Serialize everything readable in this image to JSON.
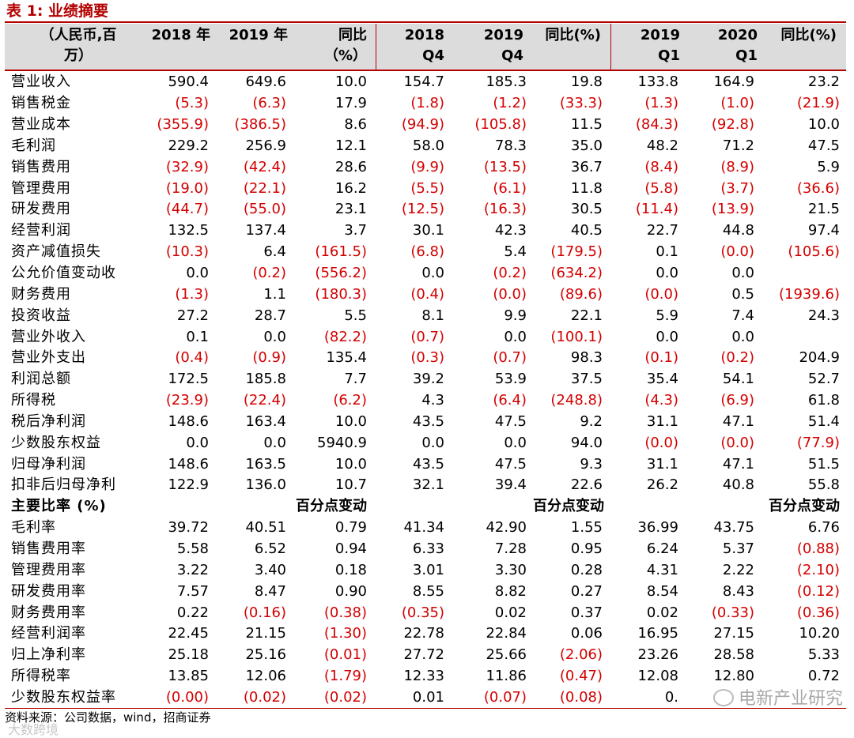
{
  "title": "表 1:  业绩摘要",
  "header": {
    "unit": "（人民币,百\n万）",
    "cols": [
      "2018 年",
      "2019 年",
      "同比\n（%）",
      "2018\nQ4",
      "2019\nQ4",
      "同比(%)",
      "2019\nQ1",
      "2020\nQ1",
      "同比(%)"
    ]
  },
  "rows": [
    {
      "label": "营业收入",
      "values": [
        "590.4",
        "649.6",
        "10.0",
        "154.7",
        "185.3",
        "19.8",
        "133.8",
        "164.9",
        "23.2"
      ]
    },
    {
      "label": "销售税金",
      "values": [
        "(5.3)",
        "(6.3)",
        "17.9",
        "(1.8)",
        "(1.2)",
        "(33.3)",
        "(1.3)",
        "(1.0)",
        "(21.9)"
      ]
    },
    {
      "label": "营业成本",
      "values": [
        "(355.9)",
        "(386.5)",
        "8.6",
        "(94.9)",
        "(105.8)",
        "11.5",
        "(84.3)",
        "(92.8)",
        "10.0"
      ]
    },
    {
      "label": "毛利润",
      "values": [
        "229.2",
        "256.9",
        "12.1",
        "58.0",
        "78.3",
        "35.0",
        "48.2",
        "71.2",
        "47.5"
      ]
    },
    {
      "label": "销售费用",
      "values": [
        "(32.9)",
        "(42.4)",
        "28.6",
        "(9.9)",
        "(13.5)",
        "36.7",
        "(8.4)",
        "(8.9)",
        "5.9"
      ]
    },
    {
      "label": "管理费用",
      "values": [
        "(19.0)",
        "(22.1)",
        "16.2",
        "(5.5)",
        "(6.1)",
        "11.8",
        "(5.8)",
        "(3.7)",
        "(36.6)"
      ]
    },
    {
      "label": "研发费用",
      "values": [
        "(44.7)",
        "(55.0)",
        "23.1",
        "(12.5)",
        "(16.3)",
        "30.5",
        "(11.4)",
        "(13.9)",
        "21.5"
      ]
    },
    {
      "label": "经营利润",
      "values": [
        "132.5",
        "137.4",
        "3.7",
        "30.1",
        "42.3",
        "40.5",
        "22.7",
        "44.8",
        "97.4"
      ]
    },
    {
      "label": "资产减值损失",
      "values": [
        "(10.3)",
        "6.4",
        "(161.5)",
        "(6.8)",
        "5.4",
        "(179.5)",
        "0.1",
        "(0.0)",
        "(105.6)"
      ]
    },
    {
      "label": "公允价值变动收",
      "values": [
        "0.0",
        "(0.2)",
        "(556.2)",
        "0.0",
        "(0.2)",
        "(634.2)",
        "0.0",
        "0.0",
        ""
      ]
    },
    {
      "label": "财务费用",
      "values": [
        "(1.3)",
        "1.1",
        "(180.3)",
        "(0.4)",
        "(0.0)",
        "(89.6)",
        "(0.0)",
        "0.5",
        "(1939.6)"
      ]
    },
    {
      "label": "投资收益",
      "values": [
        "27.2",
        "28.7",
        "5.5",
        "8.1",
        "9.9",
        "22.1",
        "5.9",
        "7.4",
        "24.3"
      ]
    },
    {
      "label": "营业外收入",
      "values": [
        "0.1",
        "0.0",
        "(82.2)",
        "(0.7)",
        "0.0",
        "(100.1)",
        "0.0",
        "0.0",
        ""
      ]
    },
    {
      "label": "营业外支出",
      "values": [
        "(0.4)",
        "(0.9)",
        "135.4",
        "(0.3)",
        "(0.7)",
        "98.3",
        "(0.1)",
        "(0.2)",
        "204.9"
      ]
    },
    {
      "label": "利润总额",
      "values": [
        "172.5",
        "185.8",
        "7.7",
        "39.2",
        "53.9",
        "37.5",
        "35.4",
        "54.1",
        "52.7"
      ]
    },
    {
      "label": "所得税",
      "values": [
        "(23.9)",
        "(22.4)",
        "(6.2)",
        "4.3",
        "(6.4)",
        "(248.8)",
        "(4.3)",
        "(6.9)",
        "61.8"
      ]
    },
    {
      "label": "税后净利润",
      "values": [
        "148.6",
        "163.4",
        "10.0",
        "43.5",
        "47.5",
        "9.2",
        "31.1",
        "47.1",
        "51.4"
      ]
    },
    {
      "label": "少数股东权益",
      "values": [
        "0.0",
        "0.0",
        "5940.9",
        "0.0",
        "0.0",
        "94.0",
        "(0.0)",
        "(0.0)",
        "(77.9)"
      ]
    },
    {
      "label": "归母净利润",
      "values": [
        "148.6",
        "163.5",
        "10.0",
        "43.5",
        "47.5",
        "9.3",
        "31.1",
        "47.1",
        "51.5"
      ]
    },
    {
      "label": "扣非后归母净利",
      "values": [
        "122.9",
        "136.0",
        "10.7",
        "32.1",
        "39.4",
        "22.6",
        "26.2",
        "40.8",
        "55.8"
      ]
    },
    {
      "label": "主要比率 (%)",
      "section": true,
      "values": [
        "",
        "",
        "百分点变动",
        "",
        "",
        "百分点变动",
        "",
        "",
        "百分点变动"
      ]
    },
    {
      "label": "毛利率",
      "values": [
        "39.72",
        "40.51",
        "0.79",
        "41.34",
        "42.90",
        "1.55",
        "36.99",
        "43.75",
        "6.76"
      ]
    },
    {
      "label": "销售费用率",
      "values": [
        "5.58",
        "6.52",
        "0.94",
        "6.33",
        "7.28",
        "0.95",
        "6.24",
        "5.37",
        "(0.88)"
      ]
    },
    {
      "label": "管理费用率",
      "values": [
        "3.22",
        "3.40",
        "0.18",
        "3.01",
        "3.30",
        "0.28",
        "4.31",
        "2.22",
        "(2.10)"
      ]
    },
    {
      "label": "研发费用率",
      "values": [
        "7.57",
        "8.47",
        "0.90",
        "8.55",
        "8.82",
        "0.27",
        "8.54",
        "8.43",
        "(0.12)"
      ]
    },
    {
      "label": "财务费用率",
      "values": [
        "0.22",
        "(0.16)",
        "(0.38)",
        "(0.35)",
        "0.02",
        "0.37",
        "0.02",
        "(0.33)",
        "(0.36)"
      ]
    },
    {
      "label": "经营利润率",
      "values": [
        "22.45",
        "21.15",
        "(1.30)",
        "22.78",
        "22.84",
        "0.06",
        "16.95",
        "27.15",
        "10.20"
      ]
    },
    {
      "label": "归上净利率",
      "values": [
        "25.18",
        "25.16",
        "(0.01)",
        "27.72",
        "25.66",
        "(2.06)",
        "23.26",
        "28.58",
        "5.33"
      ]
    },
    {
      "label": "所得税率",
      "values": [
        "13.85",
        "12.06",
        "(1.79)",
        "12.33",
        "11.86",
        "(0.47)",
        "12.08",
        "12.80",
        "0.72"
      ]
    },
    {
      "label": "少数股东权益率",
      "values": [
        "(0.00)",
        "(0.02)",
        "(0.02)",
        "0.01",
        "(0.07)",
        "(0.08)",
        "0.",
        "",
        ""
      ]
    }
  ],
  "source": "资料来源：公司数据，wind，招商证券",
  "watermark_right": "电新产业研究",
  "watermark_left": "大数跨境",
  "colors": {
    "accent": "#b40000",
    "negative": "#d40000",
    "header_bg": "#dcdcdc"
  }
}
